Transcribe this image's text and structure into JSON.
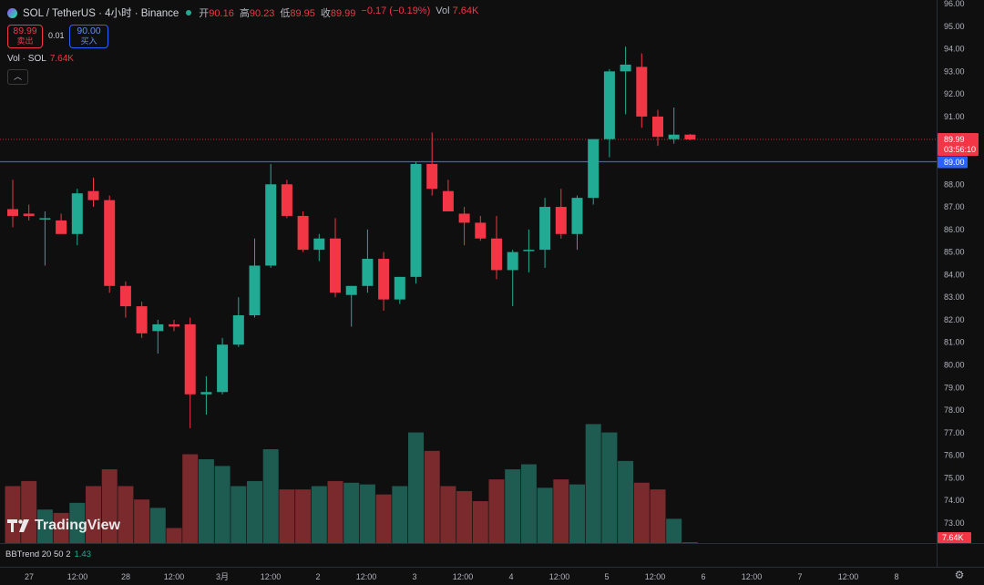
{
  "header": {
    "symbol": "SOL / TetherUS · 4小时 · Binance",
    "open_label": "开",
    "open": "90.16",
    "high_label": "高",
    "high": "90.23",
    "low_label": "低",
    "low": "89.95",
    "close_label": "收",
    "close": "89.99",
    "change": "−0.17 (−0.19%)",
    "vol_label": "Vol",
    "vol": "7.64K"
  },
  "trade": {
    "sell_price": "89.99",
    "sell_label": "卖出",
    "spread": "0.01",
    "buy_price": "90.00",
    "buy_label": "买入"
  },
  "volume_legend": {
    "label": "Vol · SOL",
    "value": "7.64K"
  },
  "watermark": "TradingView",
  "indicator": {
    "label": "BBTrend 20 50 2",
    "value": "1.43"
  },
  "colors": {
    "up": "#22ab94",
    "down": "#f23645",
    "vol_up": "#1e5c52",
    "vol_down": "#7a2a2d",
    "hline": "#2962ff",
    "bg": "#0f0f0f"
  },
  "chart_data": {
    "type": "candlestick",
    "ylim": [
      72.5,
      96.2
    ],
    "y_ticks": [
      "96.00",
      "95.00",
      "94.00",
      "93.00",
      "92.00",
      "91.00",
      "90.00",
      "89.00",
      "88.00",
      "87.00",
      "86.00",
      "85.00",
      "84.00",
      "83.00",
      "82.00",
      "81.00",
      "80.00",
      "79.00",
      "78.00",
      "77.00",
      "76.00",
      "75.00",
      "74.00",
      "73.00"
    ],
    "x_ticks": [
      "27",
      "12:00",
      "28",
      "12:00",
      "3月",
      "12:00",
      "2",
      "12:00",
      "3",
      "12:00",
      "4",
      "12:00",
      "5",
      "12:00",
      "6",
      "12:00",
      "7",
      "12:00",
      "8"
    ],
    "current_price": {
      "value": "89.99",
      "countdown": "03:56:10"
    },
    "hline_price": {
      "value": "89.00"
    },
    "volume_price_tag": "7.64K",
    "candles": [
      {
        "o": 86.9,
        "h": 88.2,
        "l": 86.1,
        "c": 86.6
      },
      {
        "o": 86.7,
        "h": 87.1,
        "l": 86.4,
        "c": 86.6
      },
      {
        "o": 86.5,
        "h": 86.8,
        "l": 84.4,
        "c": 86.5
      },
      {
        "o": 86.4,
        "h": 86.7,
        "l": 85.8,
        "c": 85.8
      },
      {
        "o": 85.8,
        "h": 87.8,
        "l": 85.3,
        "c": 87.6
      },
      {
        "o": 87.7,
        "h": 88.3,
        "l": 87.0,
        "c": 87.3
      },
      {
        "o": 87.3,
        "h": 87.5,
        "l": 83.2,
        "c": 83.5
      },
      {
        "o": 83.5,
        "h": 83.7,
        "l": 82.1,
        "c": 82.6
      },
      {
        "o": 82.6,
        "h": 82.8,
        "l": 81.2,
        "c": 81.4
      },
      {
        "o": 81.5,
        "h": 82.0,
        "l": 80.5,
        "c": 81.8
      },
      {
        "o": 81.8,
        "h": 82.0,
        "l": 81.5,
        "c": 81.7
      },
      {
        "o": 81.8,
        "h": 82.1,
        "l": 77.2,
        "c": 78.7
      },
      {
        "o": 78.7,
        "h": 79.5,
        "l": 77.8,
        "c": 78.8
      },
      {
        "o": 78.8,
        "h": 81.2,
        "l": 78.7,
        "c": 80.9
      },
      {
        "o": 80.9,
        "h": 83.0,
        "l": 80.8,
        "c": 82.2
      },
      {
        "o": 82.2,
        "h": 85.6,
        "l": 82.1,
        "c": 84.4
      },
      {
        "o": 84.4,
        "h": 88.9,
        "l": 84.3,
        "c": 88.0
      },
      {
        "o": 88.0,
        "h": 88.2,
        "l": 86.5,
        "c": 86.6
      },
      {
        "o": 86.6,
        "h": 86.8,
        "l": 85.0,
        "c": 85.1
      },
      {
        "o": 85.1,
        "h": 85.8,
        "l": 84.6,
        "c": 85.6
      },
      {
        "o": 85.6,
        "h": 86.5,
        "l": 83.0,
        "c": 83.2
      },
      {
        "o": 83.1,
        "h": 83.5,
        "l": 81.7,
        "c": 83.5
      },
      {
        "o": 83.5,
        "h": 86.0,
        "l": 83.2,
        "c": 84.7
      },
      {
        "o": 84.7,
        "h": 85.0,
        "l": 82.4,
        "c": 82.9
      },
      {
        "o": 82.9,
        "h": 83.9,
        "l": 82.7,
        "c": 83.9
      },
      {
        "o": 83.9,
        "h": 89.0,
        "l": 83.6,
        "c": 88.9
      },
      {
        "o": 88.9,
        "h": 90.3,
        "l": 87.5,
        "c": 87.8
      },
      {
        "o": 87.7,
        "h": 88.2,
        "l": 86.8,
        "c": 86.8
      },
      {
        "o": 86.7,
        "h": 87.0,
        "l": 85.3,
        "c": 86.3
      },
      {
        "o": 86.3,
        "h": 86.6,
        "l": 85.5,
        "c": 85.6
      },
      {
        "o": 85.6,
        "h": 86.6,
        "l": 83.8,
        "c": 84.2
      },
      {
        "o": 84.2,
        "h": 85.1,
        "l": 82.6,
        "c": 85.0
      },
      {
        "o": 85.1,
        "h": 86.0,
        "l": 84.1,
        "c": 85.1
      },
      {
        "o": 85.1,
        "h": 87.4,
        "l": 84.3,
        "c": 87.0
      },
      {
        "o": 87.0,
        "h": 87.8,
        "l": 85.6,
        "c": 85.8
      },
      {
        "o": 85.8,
        "h": 87.5,
        "l": 85.1,
        "c": 87.4
      },
      {
        "o": 87.4,
        "h": 90.0,
        "l": 87.1,
        "c": 90.0
      },
      {
        "o": 90.0,
        "h": 93.1,
        "l": 89.2,
        "c": 93.0
      },
      {
        "o": 93.0,
        "h": 94.1,
        "l": 91.1,
        "c": 93.3
      },
      {
        "o": 93.2,
        "h": 93.8,
        "l": 90.5,
        "c": 91.0
      },
      {
        "o": 91.0,
        "h": 91.3,
        "l": 89.7,
        "c": 90.1
      },
      {
        "o": 90.0,
        "h": 91.4,
        "l": 89.8,
        "c": 90.2
      },
      {
        "o": 90.2,
        "h": 90.23,
        "l": 89.95,
        "c": 89.99
      }
    ],
    "volumes": [
      3.4,
      3.7,
      2.0,
      1.8,
      2.4,
      3.4,
      4.4,
      3.4,
      2.6,
      2.1,
      0.9,
      5.3,
      5.0,
      4.6,
      3.4,
      3.7,
      5.6,
      3.2,
      3.2,
      3.4,
      3.7,
      3.6,
      3.5,
      2.9,
      3.4,
      6.6,
      5.5,
      3.4,
      3.1,
      2.5,
      3.8,
      4.4,
      4.7,
      3.3,
      3.8,
      3.5,
      7.1,
      6.6,
      4.9,
      3.6,
      3.2,
      1.45,
      0.02
    ]
  }
}
